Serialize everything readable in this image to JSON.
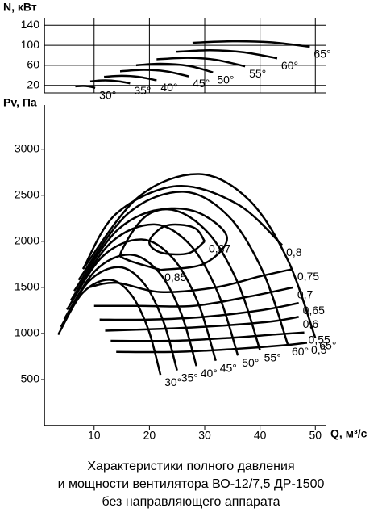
{
  "chart_data": [
    {
      "type": "line",
      "y_label": "N, кВт",
      "xlim": [
        1,
        52
      ],
      "xticks": [
        10,
        20,
        30,
        40,
        50
      ],
      "ylim": [
        5,
        155
      ],
      "yticks": [
        20,
        60,
        100,
        140
      ],
      "grid": true,
      "series": [
        {
          "name": "30°",
          "color": "#000000",
          "x": [
            6.6,
            8,
            9,
            10.2
          ],
          "values": [
            18,
            19,
            18,
            15
          ]
        },
        {
          "name": "35°",
          "color": "#000000",
          "x": [
            9.3,
            12,
            14.5,
            16.5
          ],
          "values": [
            28,
            30,
            28,
            24
          ]
        },
        {
          "name": "40°",
          "color": "#000000",
          "x": [
            11.8,
            15,
            18,
            21.3
          ],
          "values": [
            37,
            39,
            37,
            30
          ]
        },
        {
          "name": "45°",
          "color": "#000000",
          "x": [
            14.7,
            19,
            23,
            27.1
          ],
          "values": [
            48,
            51,
            48,
            38
          ]
        },
        {
          "name": "50°",
          "color": "#000000",
          "x": [
            17.6,
            22,
            27,
            31.5
          ],
          "values": [
            60,
            63,
            59,
            46
          ]
        },
        {
          "name": "55°",
          "color": "#000000",
          "x": [
            21.3,
            27,
            32,
            37.3
          ],
          "values": [
            72,
            75,
            71,
            58
          ]
        },
        {
          "name": "60°",
          "color": "#000000",
          "x": [
            24.9,
            31,
            37,
            43.1
          ],
          "values": [
            87,
            90,
            86,
            74
          ]
        },
        {
          "name": "65°",
          "color": "#000000",
          "x": [
            27.8,
            35,
            42,
            49
          ],
          "values": [
            105,
            108,
            106,
            97
          ]
        }
      ]
    },
    {
      "type": "line",
      "y_label": "Pv, Па",
      "x_label": "Q, м³/с",
      "xlim": [
        1,
        52
      ],
      "xticks": [
        10,
        20,
        30,
        40,
        50
      ],
      "ylim": [
        0,
        3480
      ],
      "yticks": [
        500,
        1000,
        1500,
        2000,
        2500,
        3000
      ],
      "grid": false,
      "series": [
        {
          "name": "30°",
          "color": "#000000",
          "x": [
            3.5,
            7.9,
            12.8,
            16.7,
            19.8,
            22
          ],
          "values": [
            986,
            1438,
            1583,
            1421,
            1044,
            551
          ]
        },
        {
          "name": "35°",
          "color": "#000000",
          "x": [
            4,
            9,
            14.5,
            19,
            22.5,
            25
          ],
          "values": [
            1071,
            1562,
            1720,
            1544,
            1134,
            599
          ]
        },
        {
          "name": "40°",
          "color": "#000000",
          "x": [
            4.6,
            10.3,
            16.5,
            21.7,
            25.7,
            28.5
          ],
          "values": [
            1156,
            1686,
            1856,
            1666,
            1224,
            646
          ]
        },
        {
          "name": "45°",
          "color": "#000000",
          "x": [
            5.1,
            11.5,
            18.6,
            24.3,
            28.8,
            32
          ],
          "values": [
            1258,
            1835,
            2020,
            1813,
            1332,
            703
          ]
        },
        {
          "name": "50°",
          "color": "#000000",
          "x": [
            5.8,
            13,
            20.9,
            27.4,
            32.4,
            36
          ],
          "values": [
            1360,
            1984,
            2184,
            1960,
            1440,
            760
          ]
        },
        {
          "name": "55°",
          "color": "#000000",
          "x": [
            6.4,
            14.4,
            23.2,
            30.4,
            36,
            40
          ],
          "values": [
            1462,
            2133,
            2348,
            2107,
            1548,
            817
          ]
        },
        {
          "name": "60°",
          "color": "#000000",
          "x": [
            7.2,
            16.2,
            26.1,
            34.2,
            40.5,
            45
          ],
          "values": [
            1581,
            2306,
            2539,
            2279,
            1674,
            884
          ]
        },
        {
          "name": "65°",
          "color": "#000000",
          "x": [
            8,
            18,
            29,
            38,
            45,
            50
          ],
          "values": [
            1700,
            2480,
            2730,
            2450,
            1800,
            950
          ]
        },
        {
          "name": "0,87",
          "color": "#000000",
          "x": [
            30,
            27,
            22,
            20,
            23,
            28,
            30
          ],
          "values": [
            2000,
            1870,
            1880,
            2000,
            2170,
            2150,
            2000
          ]
        },
        {
          "name": "0,85",
          "color": "#000000",
          "x": [
            22,
            16,
            15,
            20,
            28,
            34,
            30,
            22
          ],
          "values": [
            1690,
            1800,
            1900,
            2300,
            2330,
            2050,
            1760,
            1690
          ]
        },
        {
          "name": "0,8",
          "color": "#000000",
          "x": [
            8,
            14,
            25,
            36,
            44
          ],
          "values": [
            1700,
            2300,
            2600,
            2400,
            1960
          ]
        },
        {
          "name": "0,75",
          "color": "#000000",
          "x": [
            9,
            14,
            22,
            32,
            40,
            46
          ],
          "values": [
            1500,
            1550,
            1450,
            1500,
            1620,
            1700
          ]
        },
        {
          "name": "0,7",
          "color": "#000000",
          "x": [
            10,
            18,
            28,
            38,
            46
          ],
          "values": [
            1300,
            1300,
            1300,
            1400,
            1500
          ]
        },
        {
          "name": "0,65",
          "color": "#000000",
          "x": [
            11,
            20,
            30,
            40,
            47
          ],
          "values": [
            1150,
            1150,
            1180,
            1250,
            1330
          ]
        },
        {
          "name": "0,6",
          "color": "#000000",
          "x": [
            12,
            22,
            32,
            42,
            47
          ],
          "values": [
            1030,
            1050,
            1080,
            1130,
            1180
          ]
        },
        {
          "name": "0,55",
          "color": "#000000",
          "x": [
            13,
            24,
            34,
            43,
            48
          ],
          "values": [
            920,
            920,
            950,
            990,
            1010
          ]
        },
        {
          "name": "0,5",
          "color": "#000000",
          "x": [
            14,
            25,
            35,
            44,
            48.5
          ],
          "values": [
            800,
            800,
            830,
            870,
            900
          ]
        }
      ]
    }
  ],
  "caption": [
    "Характеристики полного давления",
    "и мощности вентилятора ВО-12/7,5 ДР-1500",
    "без направляющего аппарата"
  ]
}
